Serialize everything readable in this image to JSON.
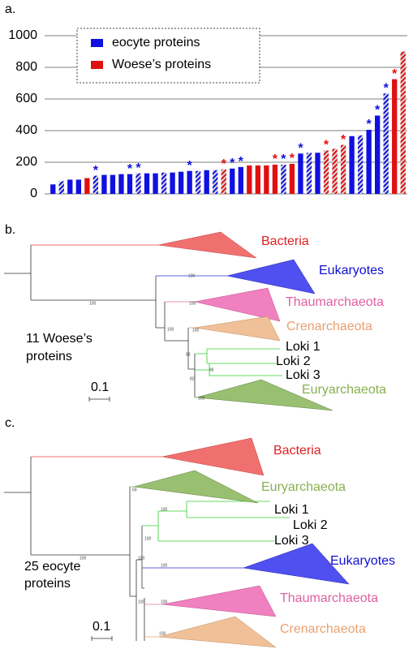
{
  "chart_data": {
    "type": "bar",
    "panel_label": "a.",
    "values": [
      60,
      80,
      90,
      90,
      100,
      115,
      120,
      120,
      125,
      125,
      130,
      130,
      130,
      135,
      135,
      140,
      145,
      145,
      150,
      150,
      155,
      160,
      170,
      180,
      180,
      180,
      185,
      185,
      190,
      255,
      260,
      260,
      275,
      285,
      310,
      365,
      370,
      405,
      495,
      635,
      725,
      900
    ],
    "bar_colors": [
      "#1010e0",
      "#1010e0",
      "#1010e0",
      "#1010e0",
      "#e01010",
      "#1010e0",
      "#1010e0",
      "#1010e0",
      "#1010e0",
      "#1010e0",
      "#1010e0",
      "#1010e0",
      "#1010e0",
      "#1010e0",
      "#1010e0",
      "#1010e0",
      "#1010e0",
      "#1010e0",
      "#1010e0",
      "#1010e0",
      "#e01010",
      "#1010e0",
      "#1010e0",
      "#e01010",
      "#e01010",
      "#e01010",
      "#e01010",
      "#1010e0",
      "#e01010",
      "#1010e0",
      "#1010e0",
      "#1010e0",
      "#e01010",
      "#e01010",
      "#e01010",
      "#1010e0",
      "#1010e0",
      "#1010e0",
      "#1010e0",
      "#1010e0",
      "#e01010",
      "#e01010"
    ],
    "hatched": [
      false,
      true,
      false,
      false,
      false,
      true,
      false,
      false,
      false,
      false,
      true,
      false,
      false,
      true,
      false,
      false,
      false,
      true,
      false,
      true,
      true,
      false,
      false,
      false,
      false,
      false,
      false,
      true,
      false,
      false,
      true,
      false,
      true,
      true,
      true,
      false,
      true,
      false,
      false,
      true,
      false,
      true
    ],
    "annotations": [
      null,
      null,
      null,
      null,
      null,
      "*",
      null,
      null,
      null,
      "*",
      "*",
      null,
      null,
      null,
      null,
      null,
      "*",
      null,
      null,
      null,
      "*",
      "*",
      "*",
      null,
      null,
      null,
      "*",
      "*",
      "*",
      "*",
      null,
      null,
      "*",
      null,
      "*",
      null,
      null,
      "*",
      "*",
      "*",
      "*",
      null
    ],
    "legend": [
      {
        "name": "eocyte proteins",
        "color": "#1010e0"
      },
      {
        "name": "Woese’s proteins",
        "color": "#e01010"
      }
    ],
    "ylim": [
      0,
      1000
    ],
    "yticks": [
      0,
      200,
      400,
      600,
      800,
      1000
    ],
    "grid": true
  },
  "panel_b": {
    "label": "b.",
    "caption": [
      "11 Woese’s",
      "proteins"
    ],
    "scale": "0.1",
    "clades": [
      "Bacteria",
      "Eukaryotes",
      "Thaumarchaeota",
      "Crenarchaeota",
      "Loki 1",
      "Loki 2",
      "Loki 3",
      "Euryarchaeota"
    ],
    "support": [
      "100",
      "100",
      "100",
      "100",
      "100",
      "83",
      "86",
      "82",
      "100"
    ]
  },
  "panel_c": {
    "label": "c.",
    "caption": [
      "25 eocyte",
      "proteins"
    ],
    "scale": "0.1",
    "clades": [
      "Bacteria",
      "Euryarchaeota",
      "Loki 1",
      "Loki 2",
      "Loki 3",
      "Eukaryotes",
      "Thaumarchaeota",
      "Crenarchaeota"
    ],
    "support": [
      "69",
      "100",
      "100",
      "100",
      "100",
      "100",
      "100",
      "100",
      "100"
    ]
  }
}
